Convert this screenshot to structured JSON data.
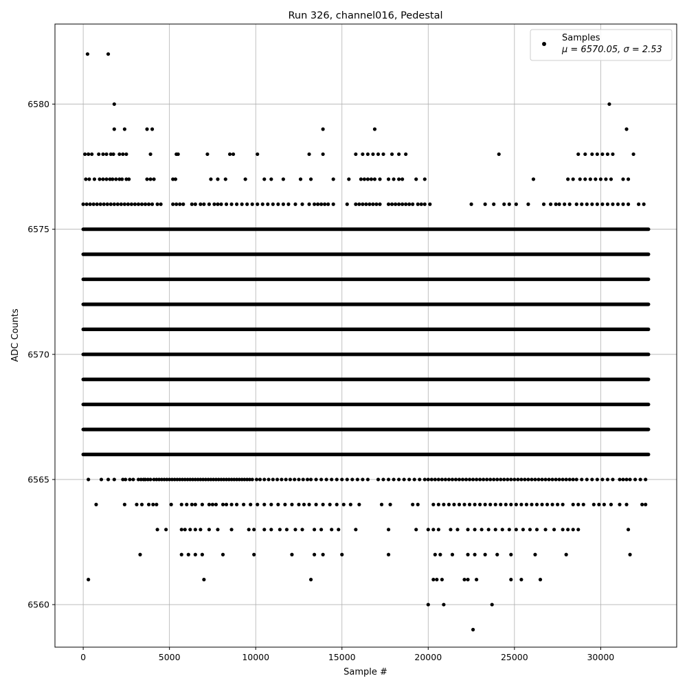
{
  "chart_data": {
    "type": "scatter",
    "title": "Run 326, channel016, Pedestal",
    "xlabel": "Sample #",
    "ylabel": "ADC Counts",
    "xlim": [
      -1638,
      34406
    ],
    "ylim": [
      6558.3,
      6583.2
    ],
    "x_ticks": [
      0,
      5000,
      10000,
      15000,
      20000,
      25000,
      30000
    ],
    "y_ticks": [
      6560,
      6565,
      6570,
      6575,
      6580
    ],
    "grid": true,
    "legend": {
      "placement": "top-right",
      "entries": [
        {
          "label": "Samples",
          "stats": "μ = 6570.05, σ = 2.53",
          "marker": "dot",
          "color": "#000000"
        }
      ]
    },
    "series": [
      {
        "name": "Samples",
        "color": "#000000",
        "n_samples": 32768,
        "mean": 6570.05,
        "sigma": 2.53,
        "levels": [
          {
            "y": 6566,
            "ranges": [
              [
                0,
                32768
              ]
            ]
          },
          {
            "y": 6567,
            "ranges": [
              [
                0,
                32768
              ]
            ]
          },
          {
            "y": 6568,
            "ranges": [
              [
                0,
                32768
              ]
            ]
          },
          {
            "y": 6569,
            "ranges": [
              [
                0,
                32768
              ]
            ]
          },
          {
            "y": 6570,
            "ranges": [
              [
                0,
                32768
              ]
            ]
          },
          {
            "y": 6571,
            "ranges": [
              [
                0,
                32768
              ]
            ]
          },
          {
            "y": 6572,
            "ranges": [
              [
                0,
                32768
              ]
            ]
          },
          {
            "y": 6573,
            "ranges": [
              [
                0,
                32768
              ]
            ]
          },
          {
            "y": 6574,
            "ranges": [
              [
                0,
                32768
              ]
            ]
          },
          {
            "y": 6575,
            "ranges": [
              [
                0,
                32768
              ]
            ]
          }
        ],
        "sparse_levels": [
          {
            "y": 6565,
            "x": [
              300,
              1050,
              1450,
              1800,
              2300,
              2450,
              2700,
              2900,
              3200,
              3350,
              3500,
              3600,
              3750,
              3900,
              4100,
              4250,
              4400,
              4550,
              4700,
              4850,
              5000,
              5150,
              5300,
              5450,
              5600,
              5750,
              5900,
              6050,
              6200,
              6350,
              6500,
              6650,
              6800,
              6950,
              7100,
              7250,
              7400,
              7550,
              7700,
              7850,
              8000,
              8150,
              8300,
              8450,
              8600,
              8750,
              8900,
              9050,
              9200,
              9350,
              9500,
              9650,
              9800,
              10050,
              10250,
              10500,
              10750,
              11000,
              11250,
              11500,
              11750,
              12000,
              12250,
              12500,
              12750,
              13000,
              13200,
              13500,
              13800,
              14100,
              14400,
              14700,
              15000,
              15300,
              15600,
              15900,
              16200,
              16500,
              17100,
              17400,
              17700,
              18000,
              18300,
              18600,
              18900,
              19200,
              19500,
              19800,
              20000,
              20200,
              20400,
              20600,
              20800,
              21000,
              21200,
              21400,
              21600,
              21800,
              22000,
              22200,
              22400,
              22600,
              22800,
              23000,
              23200,
              23400,
              23600,
              23800,
              24000,
              24200,
              24400,
              24600,
              24800,
              25000,
              25200,
              25400,
              25600,
              25800,
              26000,
              26200,
              26400,
              26600,
              26800,
              27000,
              27200,
              27400,
              27600,
              27800,
              28000,
              28200,
              28400,
              28600,
              28900,
              29200,
              29500,
              29800,
              30100,
              30400,
              30700,
              31100,
              31300,
              31500,
              31700,
              32000,
              32300,
              32600
            ]
          },
          {
            "y": 6576,
            "x": [
              0,
              200,
              400,
              600,
              800,
              1000,
              1200,
              1400,
              1600,
              1800,
              2000,
              2200,
              2400,
              2600,
              2800,
              3000,
              3200,
              3400,
              3600,
              3800,
              4000,
              4300,
              4500,
              5200,
              5400,
              5600,
              5800,
              6300,
              6500,
              6800,
              7000,
              7300,
              7600,
              7800,
              8000,
              8300,
              8600,
              8900,
              9200,
              9500,
              9800,
              10100,
              10400,
              10700,
              11000,
              11300,
              11600,
              11900,
              12300,
              12700,
              13100,
              13400,
              13600,
              13800,
              14000,
              14200,
              14500,
              15300,
              15800,
              16000,
              16200,
              16400,
              16600,
              16800,
              17000,
              17200,
              17700,
              17900,
              18100,
              18300,
              18500,
              18700,
              18900,
              19100,
              19400,
              19600,
              19800,
              20100,
              22500,
              23300,
              23800,
              24400,
              24700,
              25100,
              25800,
              26700,
              27100,
              27400,
              27600,
              27900,
              28200,
              28600,
              28900,
              29200,
              29500,
              29800,
              30100,
              30400,
              30700,
              31000,
              31300,
              31600,
              32200,
              32500
            ]
          },
          {
            "y": 6577,
            "x": [
              150,
              350,
              650,
              950,
              1150,
              1350,
              1550,
              1700,
              1900,
              2100,
              2250,
              2500,
              2650,
              3700,
              3900,
              4100,
              5200,
              5350,
              7400,
              7800,
              8250,
              9400,
              10500,
              10900,
              11600,
              12600,
              13200,
              14500,
              15400,
              16100,
              16300,
              16500,
              16700,
              16900,
              17200,
              17700,
              18000,
              18300,
              18500,
              19300,
              19800,
              26100,
              28100,
              28400,
              28800,
              29100,
              29400,
              29700,
              30000,
              30300,
              30600,
              31300,
              31600
            ]
          },
          {
            "y": 6578,
            "x": [
              100,
              300,
              500,
              900,
              1150,
              1350,
              1600,
              1750,
              2100,
              2300,
              2500,
              3900,
              5400,
              5500,
              7200,
              8500,
              8700,
              10100,
              13100,
              13900,
              15800,
              16200,
              16500,
              16800,
              17100,
              17400,
              17900,
              18300,
              18700,
              24100,
              28700,
              29100,
              29500,
              29800,
              30100,
              30400,
              30700,
              31900
            ]
          },
          {
            "y": 6579,
            "x": [
              1800,
              2400,
              3700,
              4000,
              13900,
              16900,
              31500
            ]
          },
          {
            "y": 6580,
            "x": [
              1800,
              30500
            ]
          },
          {
            "y": 6582,
            "x": [
              250,
              1450
            ]
          },
          {
            "y": 6564,
            "x": [
              750,
              2400,
              3100,
              3400,
              3800,
              4050,
              4250,
              5100,
              5700,
              6000,
              6300,
              6500,
              6900,
              7300,
              7500,
              7700,
              8100,
              8300,
              8600,
              8900,
              9300,
              9700,
              10100,
              10500,
              10900,
              11300,
              11700,
              12100,
              12500,
              12800,
              13100,
              13500,
              13900,
              14300,
              14700,
              15100,
              15500,
              16000,
              17300,
              17800,
              19100,
              19400,
              20300,
              20600,
              20900,
              21200,
              21500,
              21800,
              22100,
              22400,
              22700,
              23000,
              23300,
              23600,
              23900,
              24200,
              24500,
              24800,
              25100,
              25400,
              25700,
              26000,
              26300,
              26600,
              26900,
              27200,
              27500,
              27800,
              28400,
              28700,
              29000,
              29600,
              29900,
              30200,
              30600,
              31100,
              31500,
              32400,
              32600
            ]
          },
          {
            "y": 6563,
            "x": [
              4300,
              4800,
              5700,
              5900,
              6200,
              6500,
              6800,
              7300,
              7800,
              8600,
              9600,
              9900,
              10500,
              10900,
              11400,
              11800,
              12300,
              12700,
              13400,
              13800,
              14400,
              14800,
              15800,
              17700,
              19300,
              20000,
              20300,
              20600,
              21300,
              21700,
              22300,
              22700,
              23100,
              23500,
              23900,
              24300,
              24700,
              25100,
              25500,
              25900,
              26300,
              26800,
              27300,
              27800,
              28100,
              28400,
              28700,
              31600
            ]
          },
          {
            "y": 6562,
            "x": [
              3300,
              5700,
              6100,
              6500,
              6900,
              8100,
              9900,
              12100,
              13400,
              13900,
              15000,
              17700,
              20400,
              20700,
              21400,
              22300,
              22700,
              23300,
              24000,
              24800,
              26200,
              28000,
              31700
            ]
          },
          {
            "y": 6561,
            "x": [
              300,
              7000,
              13200,
              20300,
              20500,
              20800,
              22100,
              22300,
              22800,
              24800,
              25400,
              26500
            ]
          },
          {
            "y": 6560,
            "x": [
              20000,
              20900,
              23700
            ]
          },
          {
            "y": 6559,
            "x": [
              22600
            ]
          }
        ]
      }
    ]
  }
}
